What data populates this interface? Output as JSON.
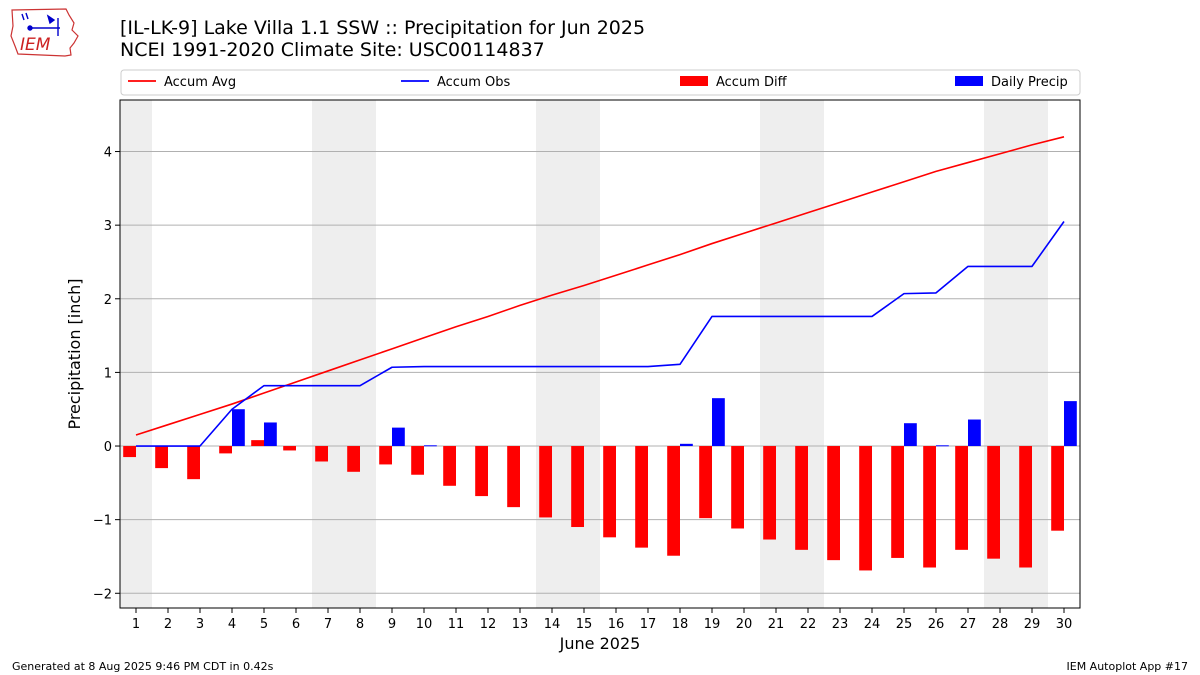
{
  "header": {
    "title": "[IL-LK-9] Lake Villa 1.1 SSW :: Precipitation for Jun 2025",
    "subtitle": "NCEI 1991-2020 Climate Site: USC00114837",
    "logo_text": "IEM"
  },
  "footer": {
    "generated": "Generated at 8 Aug 2025 9:46 PM CDT in 0.42s",
    "app": "IEM Autoplot App #17"
  },
  "colors": {
    "accum_avg": "#ff0000",
    "accum_obs": "#0000ff",
    "accum_diff": "#ff0000",
    "daily_precip": "#0000ff",
    "weekend_shade": "#eeeeee",
    "grid": "#b0b0b0"
  },
  "chart_data": {
    "type": "bar",
    "xlabel": "June 2025",
    "ylabel": "Precipitation [inch]",
    "xlim": [
      0.5,
      30.5
    ],
    "ylim": [
      -2.2,
      4.7
    ],
    "yticks": [
      -2,
      -1,
      0,
      1,
      2,
      3,
      4
    ],
    "ytick_labels": [
      "−2",
      "−1",
      "0",
      "1",
      "2",
      "3",
      "4"
    ],
    "grid": "horizontal",
    "legend": {
      "placement": "top",
      "entries": [
        {
          "label": "Accum Avg",
          "kind": "line",
          "color": "#ff0000"
        },
        {
          "label": "Accum Obs",
          "kind": "line",
          "color": "#0000ff"
        },
        {
          "label": "Accum Diff",
          "kind": "bar",
          "color": "#ff0000"
        },
        {
          "label": "Daily Precip",
          "kind": "bar",
          "color": "#0000ff"
        }
      ]
    },
    "weekend_spans": [
      [
        0.5,
        1.5
      ],
      [
        6.5,
        8.5
      ],
      [
        13.5,
        15.5
      ],
      [
        20.5,
        22.5
      ],
      [
        27.5,
        29.5
      ]
    ],
    "x": [
      1,
      2,
      3,
      4,
      5,
      6,
      7,
      8,
      9,
      10,
      11,
      12,
      13,
      14,
      15,
      16,
      17,
      18,
      19,
      20,
      21,
      22,
      23,
      24,
      25,
      26,
      27,
      28,
      29,
      30
    ],
    "x_labels": [
      "1",
      "2",
      "3",
      "4",
      "5",
      "6",
      "7",
      "8",
      "9",
      "10",
      "11",
      "12",
      "13",
      "14",
      "15",
      "16",
      "17",
      "18",
      "19",
      "20",
      "21",
      "22",
      "23",
      "24",
      "25",
      "26",
      "27",
      "28",
      "29",
      "30"
    ],
    "series": [
      {
        "name": "Accum Avg",
        "type": "line",
        "values": [
          0.15,
          0.29,
          0.43,
          0.57,
          0.72,
          0.87,
          1.02,
          1.17,
          1.32,
          1.47,
          1.62,
          1.76,
          1.91,
          2.05,
          2.18,
          2.32,
          2.46,
          2.6,
          2.75,
          2.89,
          3.03,
          3.17,
          3.31,
          3.45,
          3.59,
          3.73,
          3.85,
          3.97,
          4.09,
          4.2
        ]
      },
      {
        "name": "Accum Obs",
        "type": "line",
        "values": [
          0.0,
          0.0,
          0.0,
          0.5,
          0.82,
          0.82,
          0.82,
          0.82,
          1.07,
          1.08,
          1.08,
          1.08,
          1.08,
          1.08,
          1.08,
          1.08,
          1.08,
          1.11,
          1.76,
          1.76,
          1.76,
          1.76,
          1.76,
          1.76,
          2.07,
          2.08,
          2.44,
          2.44,
          2.44,
          3.05
        ]
      },
      {
        "name": "Accum Diff",
        "type": "bar",
        "values": [
          -0.15,
          -0.3,
          -0.45,
          -0.1,
          0.08,
          -0.06,
          -0.21,
          -0.35,
          -0.25,
          -0.39,
          -0.54,
          -0.68,
          -0.83,
          -0.97,
          -1.1,
          -1.24,
          -1.38,
          -1.49,
          -0.98,
          -1.12,
          -1.27,
          -1.41,
          -1.55,
          -1.69,
          -1.52,
          -1.65,
          -1.41,
          -1.53,
          -1.65,
          -1.15
        ]
      },
      {
        "name": "Daily Precip",
        "type": "bar",
        "values": [
          0,
          0,
          0,
          0.5,
          0.32,
          0,
          0,
          0,
          0.25,
          0.01,
          0,
          0,
          0,
          0,
          0,
          0,
          0,
          0.03,
          0.65,
          0,
          0,
          0,
          0,
          0,
          0.31,
          0.01,
          0.36,
          0,
          0,
          0.61
        ]
      }
    ]
  }
}
